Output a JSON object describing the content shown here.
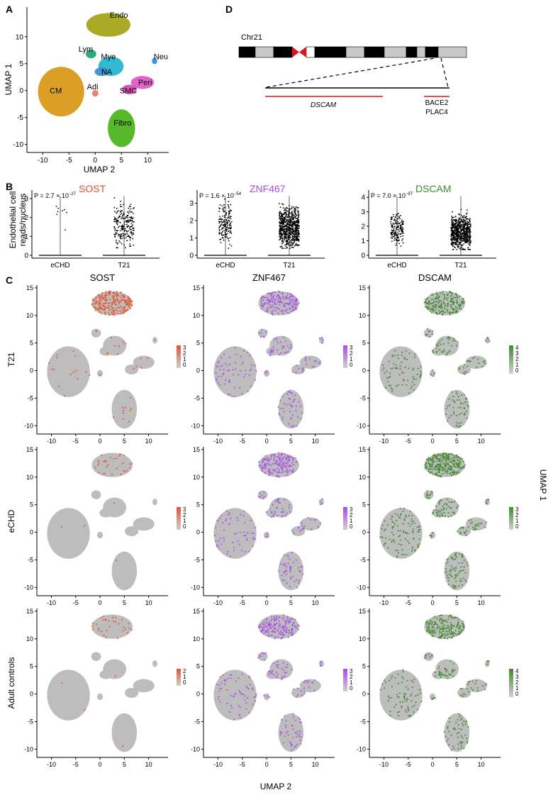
{
  "colors": {
    "endo": "#a7a51b",
    "cm": "#d99a1a",
    "fibro": "#4db51f",
    "mye": "#28b4d0",
    "lym": "#1fa67a",
    "neu": "#2e8fd6",
    "peri": "#e05cc8",
    "smc": "#d64fb8",
    "adi": "#e87a6a",
    "na": "#3a8fd0",
    "grey": "#bdbdbd",
    "sost": "#e8502f",
    "znf": "#a94ee6",
    "dscam": "#3f8a2e",
    "chrred": "#d8161c"
  },
  "panels": {
    "a_label": "A",
    "b_label": "B",
    "c_label": "C",
    "d_label": "D"
  },
  "panel_a": {
    "xlabel": "UMAP 2",
    "ylabel": "UMAP 1",
    "xticks": [
      "-10",
      "-5",
      "0",
      "5",
      "10"
    ],
    "yticks": [
      "10",
      "5",
      "0",
      "-5",
      "-10"
    ],
    "clusters": [
      {
        "name": "Endo",
        "key": "endo"
      },
      {
        "name": "Lym",
        "key": "lym"
      },
      {
        "name": "Mye",
        "key": "mye"
      },
      {
        "name": "NA",
        "key": "na"
      },
      {
        "name": "Neu",
        "key": "neu"
      },
      {
        "name": "CM",
        "key": "cm"
      },
      {
        "name": "Adi",
        "key": "adi"
      },
      {
        "name": "Peri",
        "key": "peri"
      },
      {
        "name": "SMC",
        "key": "smc"
      },
      {
        "name": "Fibro",
        "key": "fibro"
      }
    ]
  },
  "panel_d": {
    "chrom": "Chr21",
    "gene1": "DSCAM",
    "gene2": "BACE2",
    "gene3": "PLAC4"
  },
  "panel_b": {
    "ylabel_line1": "Endothelial cell",
    "ylabel_line2": "reads/nucleus",
    "groups": [
      "eCHD",
      "T21"
    ],
    "plots": [
      {
        "gene": "SOST",
        "colorKey": "sost",
        "p_prefix": "P = 2.7 × 10",
        "p_exp": "−27",
        "yticks": [
          "3",
          "2",
          "1",
          "0"
        ],
        "ymax": 3.3
      },
      {
        "gene": "ZNF467",
        "colorKey": "znf",
        "p_prefix": "P = 1.6 × 10",
        "p_exp": "−54",
        "yticks": [
          "3",
          "2",
          "1",
          "0"
        ],
        "ymax": 3.6
      },
      {
        "gene": "DSCAM",
        "colorKey": "dscam",
        "p_prefix": "P = 7.0 × 10",
        "p_exp": "−97",
        "yticks": [
          "4",
          "3",
          "2",
          "1",
          "0"
        ],
        "ymax": 4.3
      }
    ]
  },
  "panel_c": {
    "genes": [
      {
        "gene": "SOST",
        "colorKey": "sost"
      },
      {
        "gene": "ZNF467",
        "colorKey": "znf"
      },
      {
        "gene": "DSCAM",
        "colorKey": "dscam"
      }
    ],
    "rows": [
      {
        "label": "T21",
        "legends": [
          [
            "3",
            "2",
            "1",
            "0"
          ],
          [
            "3",
            "2",
            "1",
            "0"
          ],
          [
            "4",
            "3",
            "2",
            "1",
            "0"
          ]
        ]
      },
      {
        "label": "eCHD",
        "legends": [
          [
            "3",
            "2",
            "1",
            "0"
          ],
          [
            "3",
            "2",
            "1",
            "0"
          ],
          [
            "3",
            "2",
            "1",
            "0"
          ]
        ]
      },
      {
        "label": "Adult controls",
        "legends": [
          [
            "2",
            "1",
            "0"
          ],
          [
            "3",
            "2",
            "1",
            "0"
          ],
          [
            "4",
            "3",
            "2",
            "1",
            "0"
          ]
        ]
      }
    ],
    "xticks": [
      "-10",
      "-5",
      "0",
      "5",
      "10"
    ],
    "yticks": [
      "15",
      "10",
      "5",
      "0",
      "-5",
      "-10"
    ],
    "xlabel": "UMAP 2",
    "right_label": "UMAP 1"
  }
}
